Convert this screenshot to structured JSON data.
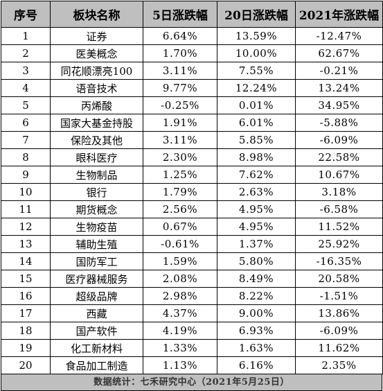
{
  "table": {
    "headers": [
      "序号",
      "板块名称",
      "5日涨跌幅",
      "20日涨跌幅",
      "2021年涨跌幅"
    ],
    "rows": [
      [
        "1",
        "证券",
        "6.64%",
        "13.59%",
        "-12.47%"
      ],
      [
        "2",
        "医美概念",
        "1.70%",
        "10.00%",
        "62.67%"
      ],
      [
        "3",
        "同花顺漂亮100",
        "3.11%",
        "7.55%",
        "-0.21%"
      ],
      [
        "4",
        "语音技术",
        "9.77%",
        "12.24%",
        "13.24%"
      ],
      [
        "5",
        "丙烯酸",
        "-0.25%",
        "0.01%",
        "34.95%"
      ],
      [
        "6",
        "国家大基金持股",
        "1.91%",
        "6.01%",
        "-5.88%"
      ],
      [
        "7",
        "保险及其他",
        "3.11%",
        "5.85%",
        "-6.09%"
      ],
      [
        "8",
        "眼科医疗",
        "2.30%",
        "8.98%",
        "22.58%"
      ],
      [
        "9",
        "生物制品",
        "1.25%",
        "7.62%",
        "10.67%"
      ],
      [
        "10",
        "银行",
        "1.79%",
        "2.63%",
        "3.18%"
      ],
      [
        "11",
        "期货概念",
        "2.56%",
        "4.95%",
        "-6.58%"
      ],
      [
        "12",
        "生物疫苗",
        "0.67%",
        "4.95%",
        "11.52%"
      ],
      [
        "13",
        "辅助生殖",
        "-0.61%",
        "1.37%",
        "25.92%"
      ],
      [
        "14",
        "国防军工",
        "1.59%",
        "5.80%",
        "-16.35%"
      ],
      [
        "15",
        "医疗器械服务",
        "2.08%",
        "8.49%",
        "20.58%"
      ],
      [
        "16",
        "超级品牌",
        "2.98%",
        "8.22%",
        "-1.51%"
      ],
      [
        "17",
        "西藏",
        "4.37%",
        "9.00%",
        "13.86%"
      ],
      [
        "18",
        "国产软件",
        "4.19%",
        "6.93%",
        "-6.09%"
      ],
      [
        "19",
        "化工新材料",
        "1.33%",
        "1.63%",
        "11.62%"
      ],
      [
        "20",
        "食品加工制造",
        "1.13%",
        "6.16%",
        "2.35%"
      ]
    ]
  },
  "footer": {
    "source": "数据统计：七禾研究中心（2021年5月25日）"
  }
}
